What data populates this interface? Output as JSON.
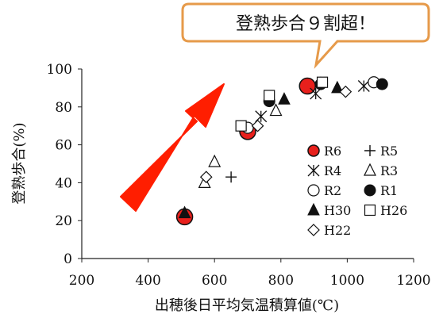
{
  "chart_data": {
    "type": "scatter",
    "xlabel": "出穂後日平均気温積算値(℃)",
    "ylabel": "登熟歩合(%)",
    "xlim": [
      200,
      1200
    ],
    "ylim": [
      0,
      100
    ],
    "xticks": [
      200,
      400,
      600,
      800,
      1000,
      1200
    ],
    "yticks": [
      0,
      20,
      40,
      60,
      80,
      100
    ],
    "grid": false,
    "legend_position": "right",
    "annotation": "登熟歩合９割超！",
    "series": [
      {
        "name": "R6",
        "marker": "circle-filled-red",
        "points": [
          [
            510,
            22
          ],
          [
            700,
            67
          ],
          [
            880,
            91
          ]
        ]
      },
      {
        "name": "R5",
        "marker": "plus",
        "points": [
          [
            650,
            43
          ],
          [
            920,
            93
          ]
        ]
      },
      {
        "name": "R4",
        "marker": "star-x",
        "points": [
          [
            740,
            75
          ],
          [
            905,
            87
          ],
          [
            1050,
            91
          ]
        ]
      },
      {
        "name": "R3",
        "marker": "triangle-open",
        "points": [
          [
            600,
            51
          ],
          [
            570,
            40
          ],
          [
            785,
            78
          ]
        ]
      },
      {
        "name": "R2",
        "marker": "circle-open",
        "points": [
          [
            700,
            69
          ],
          [
            1080,
            93
          ]
        ]
      },
      {
        "name": "R1",
        "marker": "circle-filled",
        "points": [
          [
            765,
            83
          ],
          [
            920,
            92
          ],
          [
            1105,
            92
          ]
        ]
      },
      {
        "name": "H30",
        "marker": "triangle-filled",
        "points": [
          [
            510,
            24
          ],
          [
            810,
            84
          ],
          [
            970,
            90
          ]
        ]
      },
      {
        "name": "H26",
        "marker": "square-open",
        "points": [
          [
            680,
            70
          ],
          [
            765,
            86
          ],
          [
            925,
            93
          ]
        ]
      },
      {
        "name": "H22",
        "marker": "diamond-open",
        "points": [
          [
            575,
            43
          ],
          [
            730,
            70
          ],
          [
            995,
            88
          ]
        ]
      }
    ],
    "colors": {
      "r6_fill": "#e8201c",
      "arrow": "#ff1e00",
      "callout_border": "#e69a4a"
    }
  }
}
